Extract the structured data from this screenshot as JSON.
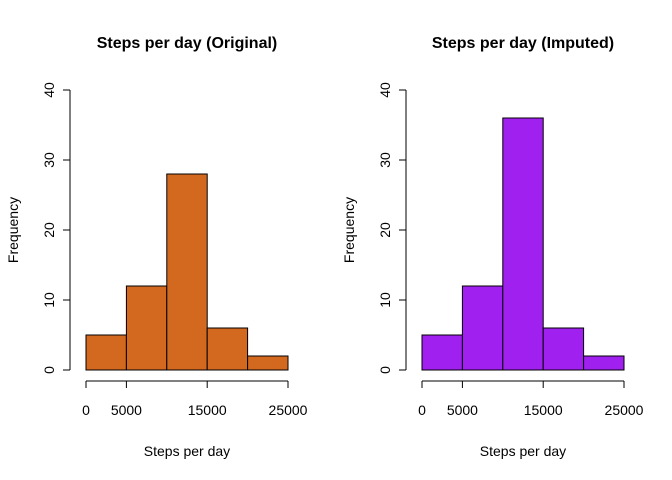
{
  "chart_data": [
    {
      "type": "bar",
      "title": "Steps per day (Original)",
      "xlabel": "Steps per day",
      "ylabel": "Frequency",
      "bins": [
        [
          0,
          5000
        ],
        [
          5000,
          10000
        ],
        [
          10000,
          15000
        ],
        [
          15000,
          20000
        ],
        [
          20000,
          25000
        ]
      ],
      "values": [
        5,
        12,
        28,
        6,
        2
      ],
      "xlim": [
        0,
        25000
      ],
      "ylim": [
        0,
        40
      ],
      "xticks": [
        0,
        5000,
        15000,
        25000
      ],
      "xtick_labels": [
        "0",
        "5000",
        "15000",
        "25000"
      ],
      "yticks": [
        0,
        10,
        20,
        30,
        40
      ],
      "ytick_labels": [
        "0",
        "10",
        "20",
        "30",
        "40"
      ],
      "color": "#d2691e",
      "grid": false
    },
    {
      "type": "bar",
      "title": "Steps per day (Imputed)",
      "xlabel": "Steps per day",
      "ylabel": "Frequency",
      "bins": [
        [
          0,
          5000
        ],
        [
          5000,
          10000
        ],
        [
          10000,
          15000
        ],
        [
          15000,
          20000
        ],
        [
          20000,
          25000
        ]
      ],
      "values": [
        5,
        12,
        36,
        6,
        2
      ],
      "xlim": [
        0,
        25000
      ],
      "ylim": [
        0,
        40
      ],
      "xticks": [
        0,
        5000,
        15000,
        25000
      ],
      "xtick_labels": [
        "0",
        "5000",
        "15000",
        "25000"
      ],
      "yticks": [
        0,
        10,
        20,
        30,
        40
      ],
      "ytick_labels": [
        "0",
        "10",
        "20",
        "30",
        "40"
      ],
      "color": "#a020f0",
      "grid": false
    }
  ]
}
